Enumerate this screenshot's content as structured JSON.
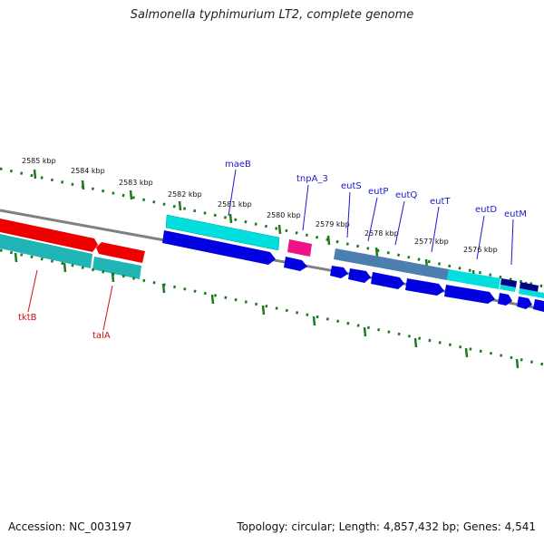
{
  "title": "Salmonella typhimurium LT2, complete genome",
  "footer": {
    "accession": "Accession: NC_003197",
    "summary": "Topology: circular; Length: 4,857,432 bp; Genes: 4,541"
  },
  "colors": {
    "tick": "#1e7a1e",
    "backbone": "#808080",
    "forward_label": "#1a1acc",
    "reverse_label": "#cc1111",
    "cds_blue": "#0000e0",
    "feature_cyan": "#00dede",
    "feature_teal": "#20b4b4",
    "feature_red": "#ee0000",
    "feature_pink": "#ee1188",
    "feature_steel": "#4a7fb0",
    "feature_navy": "#000088"
  },
  "ruler_labels": [
    "2585 kbp",
    "2584 kbp",
    "2583 kbp",
    "2582 kbp",
    "2581 kbp",
    "2580 kbp",
    "2579 kbp",
    "2578 kbp",
    "2577 kbp",
    "2576 kbp"
  ],
  "genes_forward": [
    "maeB",
    "tnpA_3",
    "eutS",
    "eutP",
    "eutQ",
    "eutT",
    "eutD",
    "eutM"
  ],
  "genes_reverse": [
    "tktB",
    "talA"
  ]
}
